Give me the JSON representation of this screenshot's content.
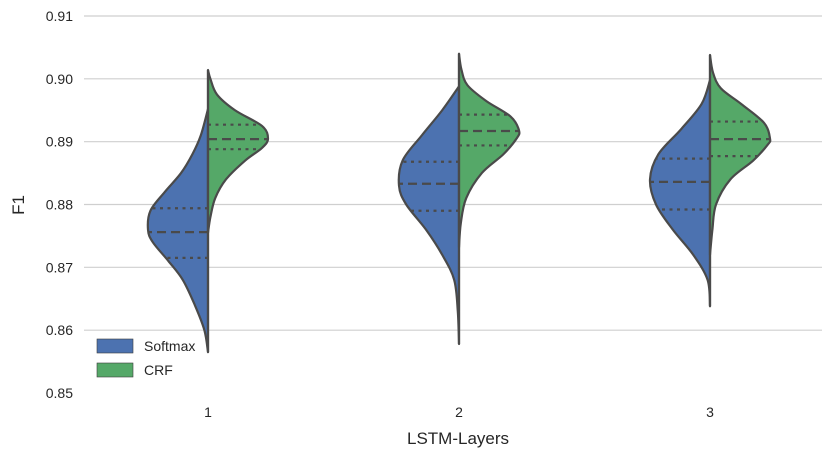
{
  "chart_data": {
    "type": "violin",
    "split": true,
    "xlabel": "LSTM-Layers",
    "ylabel": "F1",
    "ylim": [
      0.85,
      0.91
    ],
    "yticks": [
      "0.85",
      "0.86",
      "0.87",
      "0.88",
      "0.89",
      "0.90",
      "0.91"
    ],
    "categories": [
      "1",
      "2",
      "3"
    ],
    "grid": true,
    "legend_position": "bottom-left",
    "inner": "quartile",
    "series": [
      {
        "name": "Softmax",
        "side": "left",
        "color": "#4c72b0",
        "groups": [
          {
            "category": "1",
            "min": 0.8565,
            "max": 0.8952,
            "q1": 0.8715,
            "median": 0.8756,
            "q3": 0.8794,
            "profile": [
              [
                0.8565,
                0
              ],
              [
                0.86,
                0.06
              ],
              [
                0.864,
                0.22
              ],
              [
                0.868,
                0.42
              ],
              [
                0.871,
                0.66
              ],
              [
                0.874,
                0.92
              ],
              [
                0.876,
                1.0
              ],
              [
                0.879,
                0.96
              ],
              [
                0.882,
                0.72
              ],
              [
                0.885,
                0.45
              ],
              [
                0.888,
                0.26
              ],
              [
                0.891,
                0.12
              ],
              [
                0.8952,
                0
              ]
            ]
          },
          {
            "category": "2",
            "min": 0.8578,
            "max": 0.8988,
            "q1": 0.879,
            "median": 0.8833,
            "q3": 0.8868,
            "profile": [
              [
                0.8578,
                0
              ],
              [
                0.863,
                0.02
              ],
              [
                0.868,
                0.08
              ],
              [
                0.872,
                0.28
              ],
              [
                0.876,
                0.55
              ],
              [
                0.88,
                0.88
              ],
              [
                0.883,
                1.0
              ],
              [
                0.887,
                0.94
              ],
              [
                0.891,
                0.62
              ],
              [
                0.895,
                0.28
              ],
              [
                0.8988,
                0
              ]
            ]
          },
          {
            "category": "3",
            "min": 0.8638,
            "max": 0.8998,
            "q1": 0.8792,
            "median": 0.8836,
            "q3": 0.8873,
            "profile": [
              [
                0.8638,
                0
              ],
              [
                0.868,
                0.04
              ],
              [
                0.872,
                0.28
              ],
              [
                0.876,
                0.62
              ],
              [
                0.88,
                0.9
              ],
              [
                0.884,
                1.0
              ],
              [
                0.888,
                0.86
              ],
              [
                0.892,
                0.48
              ],
              [
                0.896,
                0.14
              ],
              [
                0.8998,
                0
              ]
            ]
          }
        ]
      },
      {
        "name": "CRF",
        "side": "right",
        "color": "#55a868",
        "groups": [
          {
            "category": "1",
            "min": 0.8755,
            "max": 0.9014,
            "q1": 0.8888,
            "median": 0.8904,
            "q3": 0.8927,
            "profile": [
              [
                0.8755,
                0
              ],
              [
                0.878,
                0.04
              ],
              [
                0.881,
                0.12
              ],
              [
                0.884,
                0.3
              ],
              [
                0.887,
                0.62
              ],
              [
                0.889,
                0.9
              ],
              [
                0.8905,
                1.0
              ],
              [
                0.8925,
                0.9
              ],
              [
                0.895,
                0.45
              ],
              [
                0.8975,
                0.15
              ],
              [
                0.9,
                0.04
              ],
              [
                0.9014,
                0
              ]
            ]
          },
          {
            "category": "2",
            "min": 0.8732,
            "max": 0.904,
            "q1": 0.8894,
            "median": 0.8917,
            "q3": 0.8943,
            "profile": [
              [
                0.8732,
                0
              ],
              [
                0.877,
                0.03
              ],
              [
                0.881,
                0.12
              ],
              [
                0.885,
                0.38
              ],
              [
                0.888,
                0.74
              ],
              [
                0.8905,
                0.96
              ],
              [
                0.8918,
                1.0
              ],
              [
                0.894,
                0.86
              ],
              [
                0.8965,
                0.45
              ],
              [
                0.899,
                0.14
              ],
              [
                0.9015,
                0.04
              ],
              [
                0.904,
                0
              ]
            ]
          },
          {
            "category": "3",
            "min": 0.872,
            "max": 0.9038,
            "q1": 0.8877,
            "median": 0.8904,
            "q3": 0.8932,
            "profile": [
              [
                0.872,
                0
              ],
              [
                0.876,
                0.04
              ],
              [
                0.88,
                0.1
              ],
              [
                0.884,
                0.34
              ],
              [
                0.887,
                0.72
              ],
              [
                0.8895,
                0.96
              ],
              [
                0.8905,
                1.0
              ],
              [
                0.893,
                0.9
              ],
              [
                0.896,
                0.52
              ],
              [
                0.8985,
                0.18
              ],
              [
                0.901,
                0.05
              ],
              [
                0.9038,
                0
              ]
            ]
          }
        ]
      }
    ]
  }
}
